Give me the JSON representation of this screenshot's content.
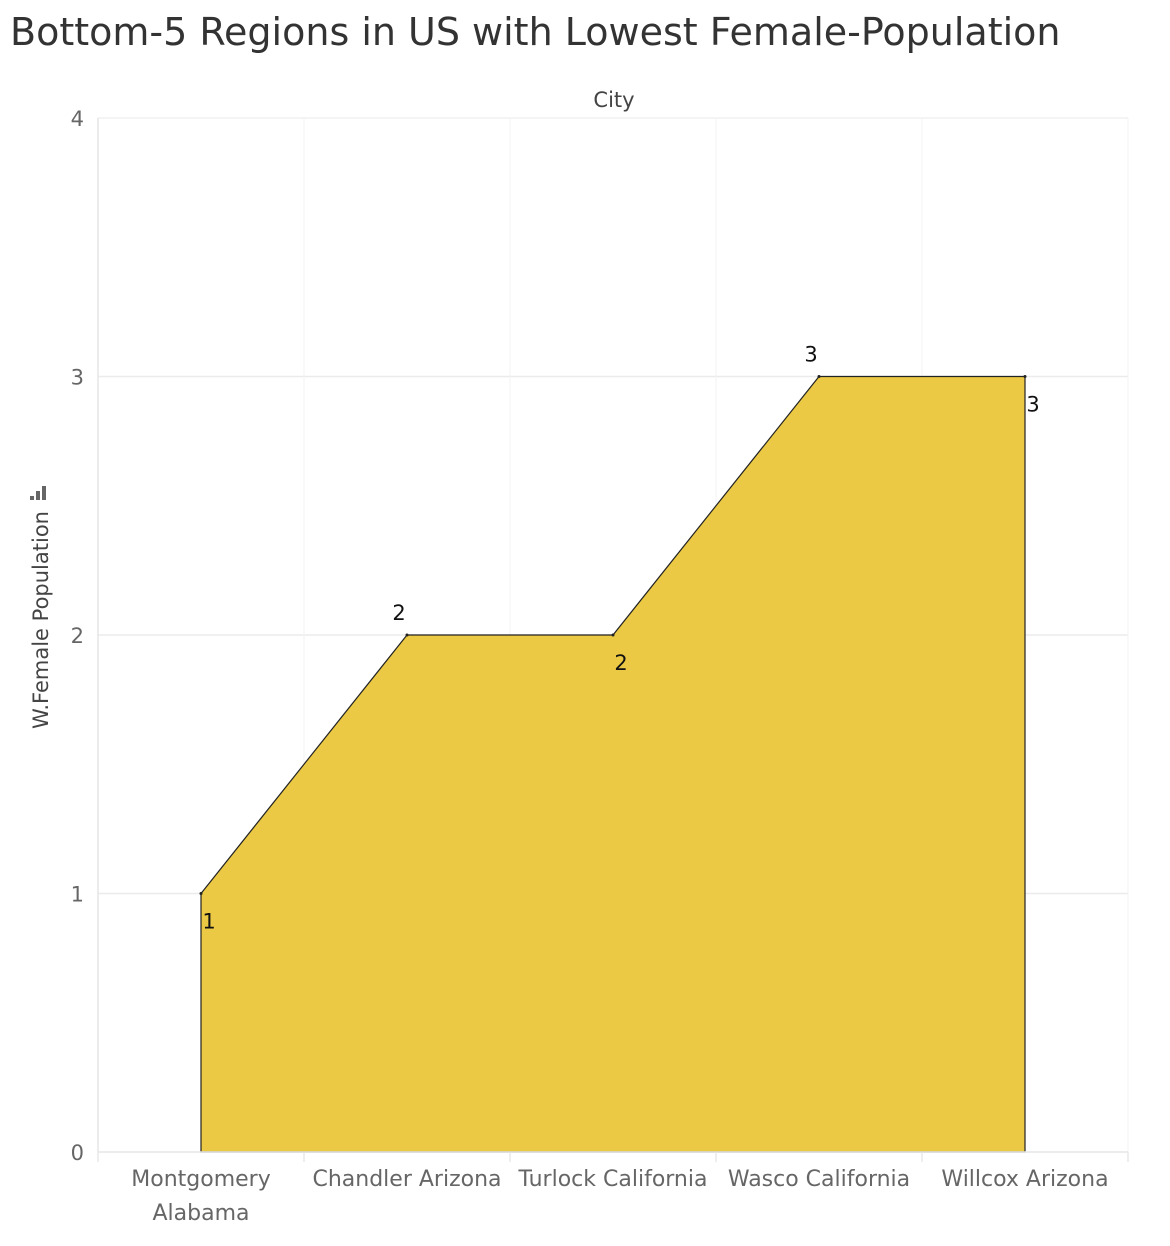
{
  "title": "Bottom-5 Regions in US with Lowest Female-Population",
  "chart_data": {
    "type": "area",
    "xlabel": "City",
    "ylabel": "W.Female Population",
    "categories": [
      [
        "Montgomery",
        "Alabama"
      ],
      [
        "Chandler Arizona"
      ],
      [
        "Turlock California"
      ],
      [
        "Wasco California"
      ],
      [
        "Willcox Arizona"
      ]
    ],
    "values": [
      1,
      2,
      2,
      3,
      3
    ],
    "yticks": [
      "0",
      "1",
      "2",
      "3",
      "4"
    ],
    "ylim": [
      0,
      4
    ],
    "fill_color": "#EBC944",
    "grid": true,
    "sort_icon": "bar-sort-icon"
  }
}
